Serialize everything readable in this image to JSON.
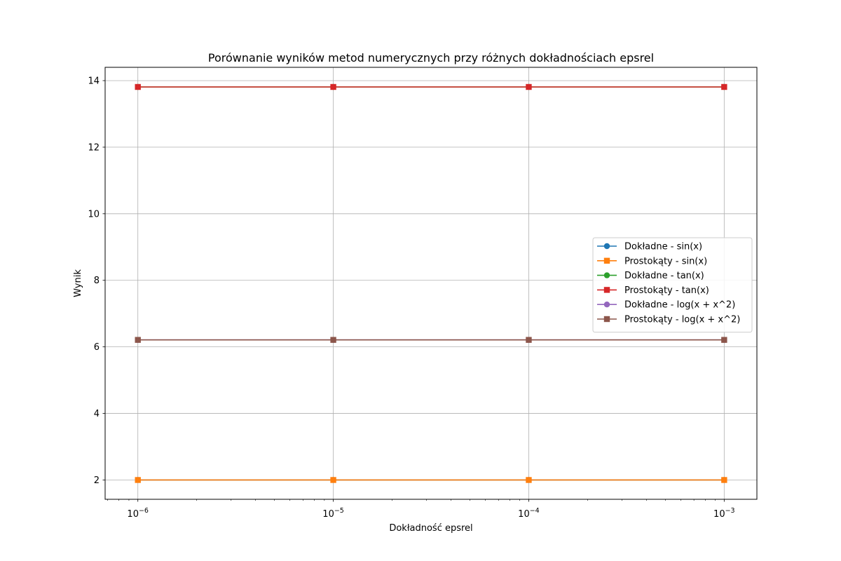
{
  "chart_data": {
    "type": "line",
    "title": "Porównanie wyników metod numerycznych przy różnych dokładnościach epsrel",
    "xlabel": "Dokładność epsrel",
    "ylabel": "Wynik",
    "xscale": "log",
    "x": [
      1e-06,
      1e-05,
      0.0001,
      0.001
    ],
    "xtick_labels": [
      {
        "base": "10",
        "exp": "−6"
      },
      {
        "base": "10",
        "exp": "−5"
      },
      {
        "base": "10",
        "exp": "−4"
      },
      {
        "base": "10",
        "exp": "−3"
      }
    ],
    "xlim": [
      6.8e-07,
      0.00147
    ],
    "ylim": [
      1.42,
      14.4
    ],
    "yticks": [
      2,
      4,
      6,
      8,
      10,
      12,
      14
    ],
    "grid": true,
    "legend_position": "center-right",
    "series": [
      {
        "name": "Dokładne - sin(x)",
        "values": [
          2.0,
          2.0,
          2.0,
          2.0
        ],
        "color": "#1f77b4",
        "marker": "circle"
      },
      {
        "name": "Prostokąty - sin(x)",
        "values": [
          2.0,
          2.0,
          2.0,
          2.0
        ],
        "color": "#ff7f0e",
        "marker": "square"
      },
      {
        "name": "Dokładne - tan(x)",
        "values": [
          13.81,
          13.81,
          13.81,
          13.81
        ],
        "color": "#2ca02c",
        "marker": "circle"
      },
      {
        "name": "Prostokąty - tan(x)",
        "values": [
          13.81,
          13.81,
          13.81,
          13.81
        ],
        "color": "#d62728",
        "marker": "square"
      },
      {
        "name": "Dokładne - log(x + x^2)",
        "values": [
          6.21,
          6.21,
          6.21,
          6.21
        ],
        "color": "#9467bd",
        "marker": "circle"
      },
      {
        "name": "Prostokąty - log(x + x^2)",
        "values": [
          6.21,
          6.21,
          6.21,
          6.21
        ],
        "color": "#8c564b",
        "marker": "square"
      }
    ]
  }
}
